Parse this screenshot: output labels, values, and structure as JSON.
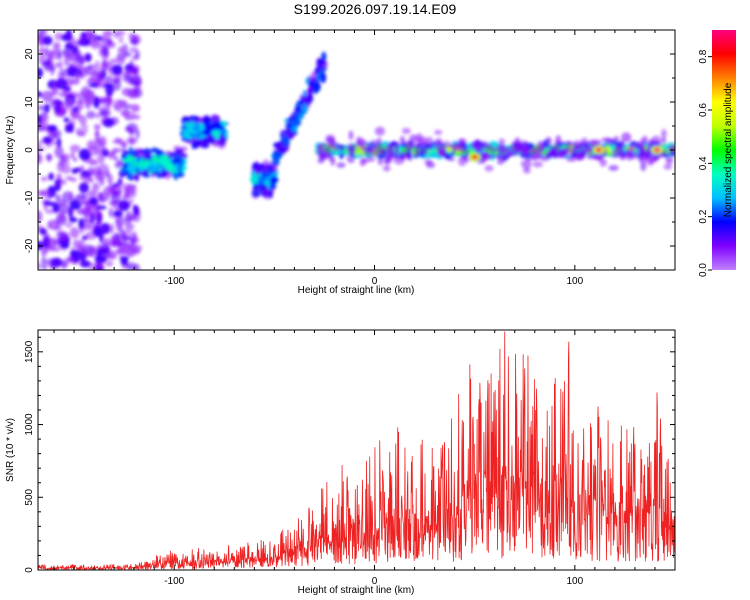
{
  "title": "S199.2026.097.19.14.E09",
  "chart_data": [
    {
      "type": "heatmap",
      "name": "spectrogram",
      "xlabel": "Height of straight line (km)",
      "ylabel": "Frequency (Hz)",
      "xlim": [
        -168,
        150
      ],
      "ylim": [
        -25,
        25
      ],
      "x_ticks": [
        -100,
        0,
        100
      ],
      "x_tick_labels": [
        "-100",
        "0",
        "100"
      ],
      "y_ticks": [
        -20,
        -10,
        0,
        10,
        20
      ],
      "y_tick_labels": [
        "-20",
        "-10",
        "0",
        "10",
        "20"
      ],
      "features": [
        {
          "label": "noise",
          "x_range": [
            -168,
            -118
          ],
          "freq_range": [
            -25,
            25
          ],
          "amplitude": 0.1
        },
        {
          "label": "low-altitude band",
          "x_range": [
            -125,
            -95
          ],
          "center_freq": -3,
          "amplitude": 0.35
        },
        {
          "label": "rising band",
          "x_range": [
            -95,
            -75
          ],
          "center_freq": 4,
          "amplitude": 0.3
        },
        {
          "label": "dip",
          "x_range": [
            -60,
            -50
          ],
          "center_freq": -6,
          "amplitude": 0.3
        },
        {
          "label": "steep rise",
          "x_range": [
            -50,
            -25
          ],
          "center_freq_range": [
            -2,
            18
          ],
          "amplitude": 0.2
        },
        {
          "label": "main band",
          "x_range": [
            -28,
            150
          ],
          "center_freq": 0,
          "amplitude": 0.5
        },
        {
          "label": "peak",
          "x": 50,
          "freq": -1.5,
          "amplitude": 0.85
        },
        {
          "label": "peak",
          "x": 112,
          "freq": 0,
          "amplitude": 0.88
        },
        {
          "label": "peak",
          "x": 141,
          "freq": 0,
          "amplitude": 0.9
        }
      ]
    },
    {
      "type": "colorbar",
      "label": "Normalized spectral amplitude",
      "range": [
        0,
        0.9
      ],
      "ticks": [
        0.0,
        0.2,
        0.4,
        0.6,
        0.8
      ],
      "tick_labels": [
        "0.0",
        "0.2",
        "0.4",
        "0.6",
        "0.8"
      ],
      "colormap": [
        "#c080ff",
        "#8000ff",
        "#0000ff",
        "#00c0ff",
        "#00ffc0",
        "#00ff00",
        "#c0ff00",
        "#ffff00",
        "#ff8000",
        "#ff0000",
        "#ff0080"
      ]
    },
    {
      "type": "line",
      "name": "snr",
      "xlabel": "Height of straight line (km)",
      "ylabel": "SNR (10 * v/v)",
      "xlim": [
        -168,
        150
      ],
      "ylim": [
        0,
        1650
      ],
      "x_ticks": [
        -100,
        0,
        100
      ],
      "x_tick_labels": [
        "-100",
        "0",
        "100"
      ],
      "y_ticks": [
        0,
        500,
        1000,
        1500
      ],
      "y_tick_labels": [
        "0",
        "500",
        "1000",
        "1500"
      ],
      "color": "#ee2222",
      "envelope": {
        "x": [
          -168,
          -120,
          -110,
          -100,
          -85,
          -70,
          -60,
          -50,
          -40,
          -30,
          -20,
          -10,
          0,
          10,
          20,
          30,
          40,
          45,
          50,
          60,
          65,
          70,
          80,
          90,
          95,
          100,
          110,
          120,
          130,
          140,
          150
        ],
        "max": [
          40,
          40,
          100,
          140,
          160,
          180,
          200,
          220,
          380,
          520,
          700,
          800,
          870,
          1000,
          900,
          950,
          1100,
          1400,
          1500,
          1520,
          1640,
          1600,
          1450,
          1450,
          1580,
          1300,
          1150,
          1080,
          1000,
          1220,
          600
        ]
      },
      "annotated_peaks": [
        {
          "x": 65,
          "y": 1640
        },
        {
          "x": 97,
          "y": 1570
        },
        {
          "x": 141,
          "y": 1220
        }
      ]
    }
  ]
}
